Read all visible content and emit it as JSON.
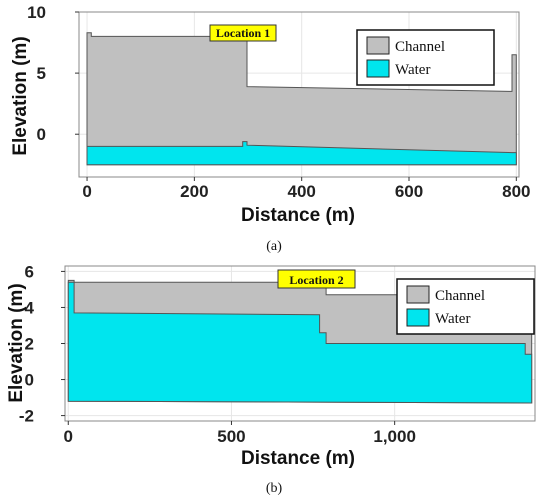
{
  "chart_data": [
    {
      "type": "area",
      "caption": "(a)",
      "xlabel": "Distance (m)",
      "ylabel": "Elevation (m)",
      "xlim": [
        -15,
        805
      ],
      "ylim": [
        -3.5,
        10
      ],
      "xticks": [
        0,
        200,
        400,
        600,
        800
      ],
      "xtick_labels": [
        "0",
        "200",
        "400",
        "600",
        "800"
      ],
      "yticks": [
        0,
        5,
        10
      ],
      "ytick_labels": [
        "0",
        "5",
        "10"
      ],
      "grid": true,
      "legend_position": "top-right",
      "annotation": "Location 1",
      "colors": {
        "channel": "#c0c0c0",
        "water": "#00e5ee",
        "outline": "#555555"
      },
      "series": [
        {
          "name": "Channel",
          "x": [
            0,
            0,
            8,
            8,
            290,
            290,
            298,
            298,
            792,
            792,
            800,
            800
          ],
          "y": [
            -2.5,
            8.3,
            8.3,
            8.0,
            8.0,
            8.2,
            8.2,
            3.9,
            3.5,
            6.5,
            6.5,
            -2.5
          ]
        },
        {
          "name": "Water",
          "x": [
            0,
            0,
            290,
            290,
            298,
            298,
            792,
            800,
            800
          ],
          "y": [
            -2.5,
            -1.0,
            -1.0,
            -0.6,
            -0.6,
            -0.9,
            -1.5,
            -1.5,
            -2.5
          ]
        }
      ]
    },
    {
      "type": "area",
      "caption": "(b)",
      "xlabel": "Distance (m)",
      "ylabel": "Elevation (m)",
      "xlim": [
        -10,
        1430
      ],
      "ylim": [
        -2.3,
        6.3
      ],
      "xticks": [
        0,
        500,
        1000
      ],
      "xtick_labels": [
        "0",
        "500",
        "1,000"
      ],
      "yticks": [
        -2,
        0,
        2,
        4,
        6
      ],
      "ytick_labels": [
        "-2",
        "0",
        "2",
        "4",
        "6"
      ],
      "grid": true,
      "legend_position": "top-right",
      "annotation": "Location 2",
      "colors": {
        "channel": "#c0c0c0",
        "water": "#00e5ee",
        "outline": "#555555"
      },
      "series": [
        {
          "name": "Channel",
          "x": [
            0,
            0,
            18,
            18,
            770,
            770,
            790,
            790,
            1400,
            1400,
            1420,
            1420
          ],
          "y": [
            -1.2,
            5.5,
            5.5,
            5.4,
            5.4,
            5.5,
            5.5,
            4.7,
            4.7,
            4.7,
            4.7,
            -1.3
          ]
        },
        {
          "name": "Water",
          "x": [
            0,
            0,
            18,
            18,
            770,
            770,
            790,
            790,
            1400,
            1400,
            1420,
            1420
          ],
          "y": [
            -1.2,
            5.4,
            5.4,
            3.7,
            3.6,
            2.6,
            2.6,
            2.0,
            2.0,
            1.4,
            1.4,
            -1.3
          ]
        }
      ]
    }
  ]
}
